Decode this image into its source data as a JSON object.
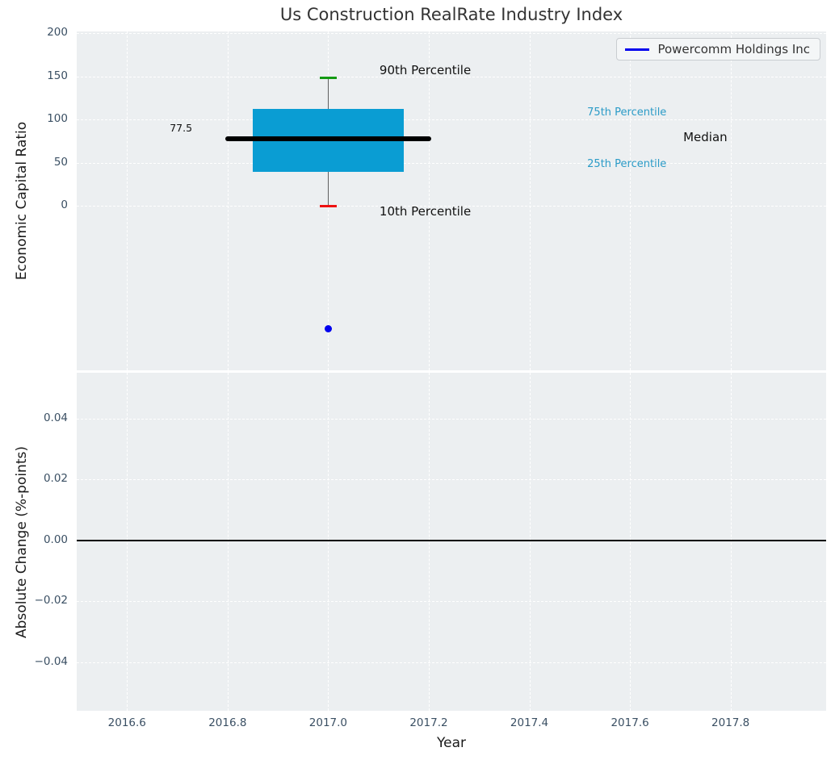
{
  "title": "Us Construction RealRate Industry Index",
  "legend": {
    "series_label": "Powercomm Holdings Inc",
    "line_color": "#0000ee"
  },
  "colors": {
    "figure_bg": "#ffffff",
    "axes_bg": "#eceff1",
    "grid": "#ffffff",
    "tick_label": "#3a4f63",
    "axis_label": "#1a1a1a",
    "title": "#333333",
    "box_fill": "#0a9dd3",
    "median_line": "#000000",
    "whisker": "#606060",
    "cap_90": "#139a13",
    "cap_10": "#ee1111",
    "company_point": "#0000ee",
    "annotation_blue": "#2b9bc7",
    "annotation_black": "#111111",
    "zero_line": "#000000"
  },
  "chart_data": {
    "type": "box+scatter",
    "title": "Us Construction RealRate Industry Index",
    "legend_entries": [
      "Powercomm Holdings Inc"
    ],
    "legend_position": "upper right",
    "grid": true,
    "plots": [
      {
        "name": "economic-capital-ratio",
        "ylabel": "Economic Capital Ratio",
        "xlim": [
          2016.5,
          2017.99
        ],
        "ylim": [
          -190,
          202
        ],
        "xticks": [
          2016.6,
          2016.8,
          2017.0,
          2017.2,
          2017.4,
          2017.6,
          2017.8
        ],
        "xtick_labels": null,
        "yticks": [
          200,
          150,
          100,
          50,
          0
        ],
        "ytick_labels": [
          "200",
          "150",
          "100",
          "50",
          "0"
        ],
        "box": {
          "x": 2017.0,
          "box_half_width": 0.15,
          "median_half_width": 0.205,
          "cap_half_width": 0.017,
          "p10": 0,
          "p25": 40,
          "median": 77.5,
          "p75": 112.5,
          "p90": 148.5
        },
        "company_point": {
          "x": 2017.0,
          "y": -142
        },
        "annotations": [
          {
            "name": "label-90th-percentile",
            "text": "90th Percentile",
            "x": 2017.102,
            "y": 157,
            "size": 15,
            "color_key": "annotation_black"
          },
          {
            "name": "label-10th-percentile",
            "text": "10th Percentile",
            "x": 2017.102,
            "y": -6,
            "size": 15,
            "color_key": "annotation_black"
          },
          {
            "name": "label-median-value",
            "text": "77.5",
            "x": 2016.685,
            "y": 90,
            "size": 12.5,
            "color_key": "annotation_black"
          },
          {
            "name": "label-75th-percentile",
            "text": "75th Percentile",
            "x": 2017.515,
            "y": 108,
            "size": 13,
            "color_key": "annotation_blue"
          },
          {
            "name": "label-median",
            "text": "Median",
            "x": 2017.706,
            "y": 80,
            "size": 15,
            "color_key": "annotation_black"
          },
          {
            "name": "label-25th-percentile",
            "text": "25th Percentile",
            "x": 2017.515,
            "y": 48,
            "size": 13,
            "color_key": "annotation_blue"
          }
        ]
      },
      {
        "name": "absolute-change",
        "ylabel": "Absolute Change (%-points)",
        "xlabel": "Year",
        "xlim": [
          2016.5,
          2017.99
        ],
        "ylim": [
          -0.056,
          0.055
        ],
        "xticks": [
          2016.6,
          2016.8,
          2017.0,
          2017.2,
          2017.4,
          2017.6,
          2017.8
        ],
        "xtick_labels": [
          "2016.6",
          "2016.8",
          "2017.0",
          "2017.2",
          "2017.4",
          "2017.6",
          "2017.8"
        ],
        "yticks": [
          0.04,
          0.02,
          0.0,
          -0.02,
          -0.04
        ],
        "ytick_labels": [
          "0.04",
          "0.02",
          "0.00",
          "−0.02",
          "−0.04"
        ],
        "zero_line": 0.0
      }
    ]
  }
}
